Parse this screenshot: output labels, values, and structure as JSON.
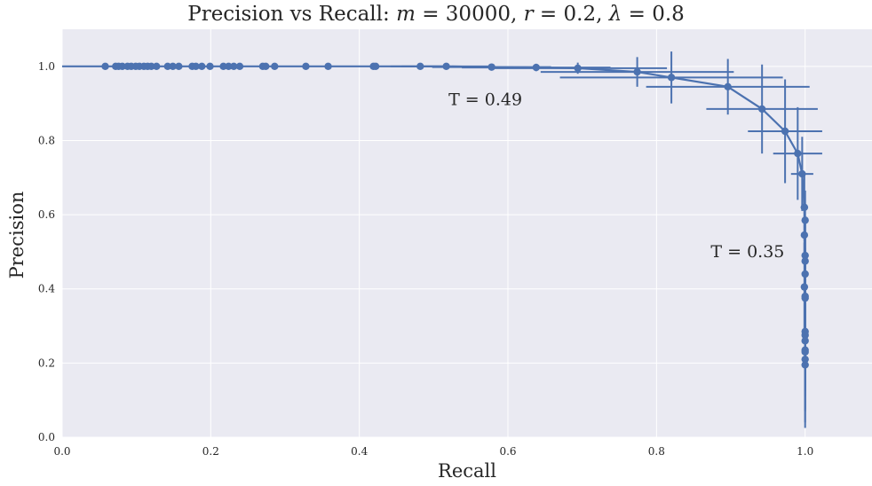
{
  "chart_data": {
    "type": "scatter",
    "title": {
      "prefix": "Precision vs Recall: ",
      "m": "m",
      "m_val": "30000",
      "r": "r",
      "r_val": "0.2",
      "lambda": "λ",
      "lambda_val": "0.8"
    },
    "xlabel": "Recall",
    "ylabel": "Precision",
    "xlim": [
      0.0,
      1.09
    ],
    "ylim": [
      0.0,
      1.1
    ],
    "xticks": [
      0.0,
      0.2,
      0.4,
      0.6,
      0.8,
      1.0
    ],
    "yticks": [
      0.0,
      0.2,
      0.4,
      0.6,
      0.8,
      1.0
    ],
    "xtick_labels": [
      "0.0",
      "0.2",
      "0.4",
      "0.6",
      "0.8",
      "1.0"
    ],
    "ytick_labels": [
      "0.0",
      "0.2",
      "0.4",
      "0.6",
      "0.8",
      "1.0"
    ],
    "grid": true,
    "background": "#eaeaf2",
    "series_color": "#4c72b0",
    "annotations": [
      {
        "text": "T = 0.49",
        "x": 0.52,
        "y": 0.91
      },
      {
        "text": "T = 0.35",
        "x": 0.873,
        "y": 0.5
      }
    ],
    "points": [
      {
        "x": 0.0,
        "y": 1.0
      },
      {
        "x": 0.058,
        "y": 1.0
      },
      {
        "x": 0.072,
        "y": 1.0
      },
      {
        "x": 0.076,
        "y": 1.0
      },
      {
        "x": 0.081,
        "y": 1.0
      },
      {
        "x": 0.088,
        "y": 1.0
      },
      {
        "x": 0.093,
        "y": 1.0
      },
      {
        "x": 0.099,
        "y": 1.0
      },
      {
        "x": 0.104,
        "y": 1.0
      },
      {
        "x": 0.11,
        "y": 1.0
      },
      {
        "x": 0.115,
        "y": 1.0
      },
      {
        "x": 0.12,
        "y": 1.0
      },
      {
        "x": 0.127,
        "y": 1.0
      },
      {
        "x": 0.142,
        "y": 1.0
      },
      {
        "x": 0.149,
        "y": 1.0
      },
      {
        "x": 0.157,
        "y": 1.0
      },
      {
        "x": 0.175,
        "y": 1.0
      },
      {
        "x": 0.18,
        "y": 1.0
      },
      {
        "x": 0.188,
        "y": 1.0
      },
      {
        "x": 0.199,
        "y": 1.0
      },
      {
        "x": 0.217,
        "y": 1.0
      },
      {
        "x": 0.224,
        "y": 1.0
      },
      {
        "x": 0.231,
        "y": 1.0
      },
      {
        "x": 0.239,
        "y": 1.0
      },
      {
        "x": 0.27,
        "y": 1.0
      },
      {
        "x": 0.274,
        "y": 1.0
      },
      {
        "x": 0.286,
        "y": 1.0
      },
      {
        "x": 0.328,
        "y": 1.0
      },
      {
        "x": 0.358,
        "y": 1.0
      },
      {
        "x": 0.419,
        "y": 1.0
      },
      {
        "x": 0.422,
        "y": 1.0
      },
      {
        "x": 0.482,
        "y": 1.0,
        "xerr": 0.04
      },
      {
        "x": 0.517,
        "y": 1.0,
        "xerr": 0.06,
        "yerr": 0.004
      },
      {
        "x": 0.578,
        "y": 0.998,
        "xerr": 0.08,
        "yerr": 0.005
      },
      {
        "x": 0.638,
        "y": 0.997,
        "xerr": 0.1,
        "yerr": 0.01
      },
      {
        "x": 0.694,
        "y": 0.995,
        "xerr": 0.12,
        "yerr": 0.015
      },
      {
        "x": 0.774,
        "y": 0.985,
        "xerr": 0.13,
        "yerr": 0.04
      },
      {
        "x": 0.82,
        "y": 0.97,
        "xerr": 0.15,
        "yerr": 0.07
      },
      {
        "x": 0.896,
        "y": 0.945,
        "xerr": 0.11,
        "yerr": 0.075
      },
      {
        "x": 0.942,
        "y": 0.885,
        "xerr": 0.075,
        "yerr": 0.12
      },
      {
        "x": 0.973,
        "y": 0.825,
        "xerr": 0.05,
        "yerr": 0.14
      },
      {
        "x": 0.99,
        "y": 0.765,
        "xerr": 0.033,
        "yerr": 0.125
      },
      {
        "x": 0.996,
        "y": 0.71,
        "xerr": 0.015,
        "yerr": 0.1
      },
      {
        "x": 0.999,
        "y": 0.62,
        "xerr": 0.005,
        "yerr": 0.09
      },
      {
        "x": 1.0,
        "y": 0.585,
        "yerr": 0.08
      },
      {
        "x": 0.999,
        "y": 0.545,
        "yerr": 0.08
      },
      {
        "x": 1.0,
        "y": 0.49,
        "yerr": 0.1
      },
      {
        "x": 1.0,
        "y": 0.475,
        "yerr": 0.1
      },
      {
        "x": 1.0,
        "y": 0.44,
        "yerr": 0.1
      },
      {
        "x": 0.999,
        "y": 0.405,
        "yerr": 0.12
      },
      {
        "x": 1.0,
        "y": 0.375,
        "yerr": 0.13
      },
      {
        "x": 1.0,
        "y": 0.38,
        "yerr": 0.13
      },
      {
        "x": 1.0,
        "y": 0.285,
        "yerr": 0.15
      },
      {
        "x": 1.0,
        "y": 0.275,
        "yerr": 0.15
      },
      {
        "x": 1.0,
        "y": 0.26,
        "yerr": 0.15
      },
      {
        "x": 1.0,
        "y": 0.235,
        "yerr": 0.16
      },
      {
        "x": 1.0,
        "y": 0.23,
        "yerr": 0.16
      },
      {
        "x": 1.0,
        "y": 0.21,
        "yerr": 0.17
      },
      {
        "x": 1.0,
        "y": 0.195,
        "yerr": 0.17
      }
    ]
  }
}
